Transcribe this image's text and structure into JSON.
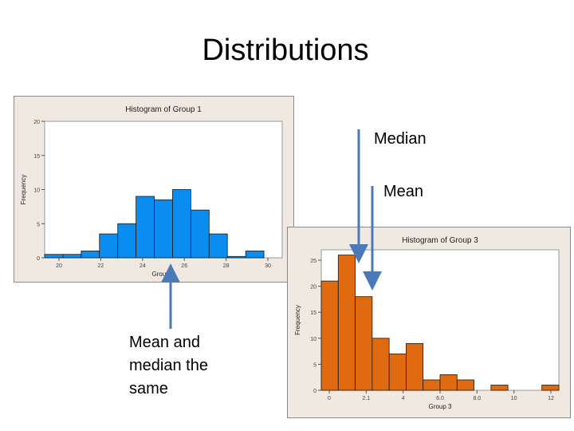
{
  "slide": {
    "title": "Distributions",
    "annotations": {
      "median": "Median",
      "mean": "Mean",
      "same": "Mean and median the same"
    }
  },
  "colors": {
    "group1": "#0a8df0",
    "group3": "#e06a10",
    "arrow": "#4a7ab8"
  },
  "chart_data": [
    {
      "type": "bar",
      "title": "Histogram of Group 1",
      "xlabel": "Group 1",
      "ylabel": "Frequency",
      "x_ticks": [
        "20",
        "22",
        "24",
        "26",
        "28",
        "30"
      ],
      "y_ticks": [
        0,
        5,
        10,
        15,
        20
      ],
      "ylim": [
        0,
        20
      ],
      "categories": [
        "19",
        "20",
        "21",
        "22",
        "23",
        "24",
        "25",
        "26",
        "27",
        "28",
        "29",
        "30",
        "31"
      ],
      "values": [
        0.5,
        0.5,
        1,
        3.5,
        5,
        9,
        8.5,
        10,
        7,
        3.5,
        0.2,
        1,
        0
      ],
      "grid": false
    },
    {
      "type": "bar",
      "title": "Histogram of Group 3",
      "xlabel": "Group 3",
      "ylabel": "Frequency",
      "x_ticks": [
        "0",
        "2.1",
        "4",
        "6.0",
        "8.0",
        "10",
        "12"
      ],
      "y_ticks": [
        0,
        5,
        10,
        15,
        20,
        25
      ],
      "ylim": [
        0,
        27
      ],
      "categories": [
        "0",
        "1",
        "2",
        "3",
        "4",
        "5",
        "6",
        "7",
        "8",
        "9",
        "10",
        "11",
        "12",
        "13"
      ],
      "values": [
        21,
        26,
        18,
        10,
        7,
        9,
        2,
        3,
        2,
        0,
        1,
        0,
        0,
        1
      ],
      "grid": false
    }
  ]
}
